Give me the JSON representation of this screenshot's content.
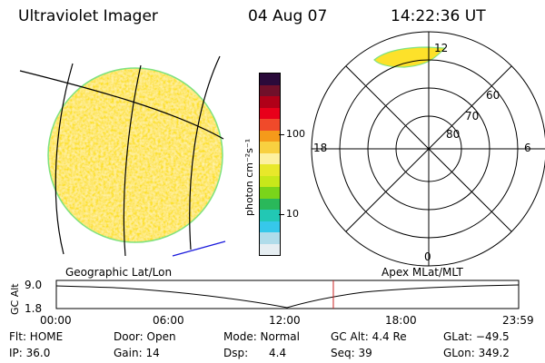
{
  "header": {
    "title": "Ultraviolet Imager",
    "date": "04 Aug 07",
    "time": "14:22:36 UT"
  },
  "colorbar": {
    "unit_label": "photon cm⁻²s⁻¹",
    "ticks": [
      "100",
      "10"
    ]
  },
  "polar": {
    "mlt_labels": {
      "top": "12",
      "left": "18",
      "right": "6",
      "bottom": "0"
    },
    "lat_labels": [
      "60",
      "70",
      "80"
    ]
  },
  "timeline": {
    "left_caption": "Geographic Lat/Lon",
    "right_caption": "Apex MLat/MLT",
    "axis_title": "GC Alt",
    "y_ticks": [
      "9.0",
      "1.8"
    ],
    "x_ticks": [
      "00:00",
      "06:00",
      "12:00",
      "18:00",
      "23:59"
    ],
    "current_time_hours": 14.38,
    "marker_color": "#cc2222"
  },
  "status": {
    "row1": [
      {
        "label": "Flt: HOME"
      },
      {
        "label": "Door: Open"
      },
      {
        "label": "Mode: Normal"
      },
      {
        "label": "GC Alt: 4.4 Re"
      },
      {
        "label": "GLat: −49.5"
      }
    ],
    "row2": [
      {
        "label": "IP: 36.0"
      },
      {
        "label": "Gain: 14"
      },
      {
        "label": "Dsp:      4.4"
      },
      {
        "label": "Seq: 39"
      },
      {
        "label": "GLon: 349.2"
      }
    ]
  },
  "colors": {
    "disk_fill": "#fde12a",
    "disk_edge": "#7fe27f",
    "bar_colors_top_to_bottom": [
      "#2a0a3a",
      "#70102a",
      "#b00018",
      "#e8001a",
      "#f04a2a",
      "#f59a1a",
      "#f8d040",
      "#fdf0a0",
      "#e8e82a",
      "#c8e81a",
      "#7ad41a",
      "#2ab85a",
      "#22c8b4",
      "#36c8ea",
      "#b0dcea",
      "#e6eef2"
    ]
  }
}
